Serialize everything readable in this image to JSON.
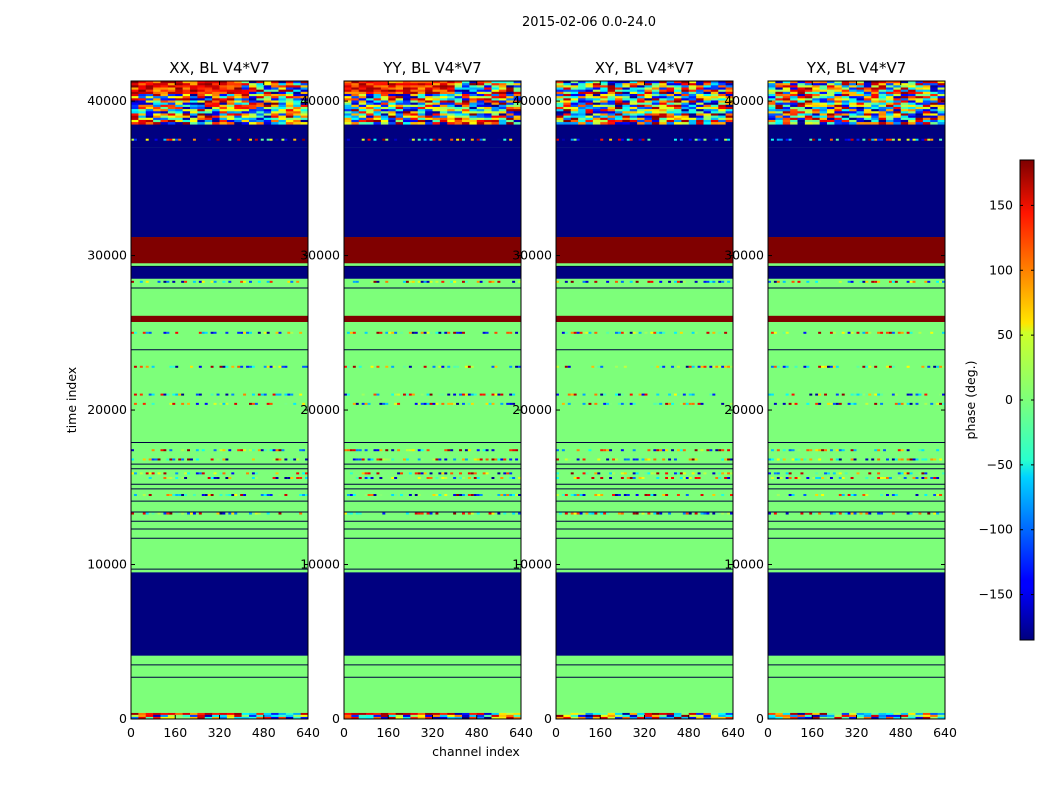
{
  "suptitle": "2015-02-06 0.0-24.0",
  "colors": {
    "dark_blue": "#000080",
    "dark_red": "#800000",
    "green": "#7dff7a",
    "frame": "#000000"
  },
  "chart_data": {
    "type": "heatmap",
    "title": "2015-02-06 0.0-24.0",
    "xlabel": "channel index",
    "ylabel": "time index",
    "xlim": [
      0,
      640
    ],
    "ylim": [
      0,
      41300
    ],
    "xticks": [
      0,
      160,
      320,
      480,
      640
    ],
    "yticks": [
      0,
      10000,
      20000,
      30000,
      40000
    ],
    "panels": [
      {
        "title": "XX, BL V4*V7",
        "pol": "XX"
      },
      {
        "title": "YY, BL V4*V7",
        "pol": "YY"
      },
      {
        "title": "XY, BL V4*V7",
        "pol": "XY"
      },
      {
        "title": "YX, BL V4*V7",
        "pol": "YX"
      }
    ],
    "phase_bands_approx": [
      {
        "y0": 0,
        "y1": 400,
        "phase": "noisy"
      },
      {
        "y0": 400,
        "y1": 4100,
        "phase": 0
      },
      {
        "y0": 4100,
        "y1": 9500,
        "phase": -180
      },
      {
        "y0": 9500,
        "y1": 18000,
        "phase": 0
      },
      {
        "y0": 18000,
        "y1": 25500,
        "phase": 0
      },
      {
        "y0": 25700,
        "y1": 26100,
        "phase": 180
      },
      {
        "y0": 26300,
        "y1": 27700,
        "phase": 0
      },
      {
        "y0": 28500,
        "y1": 29300,
        "phase": -180
      },
      {
        "y0": 29500,
        "y1": 31200,
        "phase": 180
      },
      {
        "y0": 31200,
        "y1": 37000,
        "phase": -180
      },
      {
        "y0": 37000,
        "y1": 38500,
        "phase": -180
      },
      {
        "y0": 38500,
        "y1": 41300,
        "phase": "noisy"
      }
    ],
    "colorbar": {
      "label": "phase (deg.)",
      "range": [
        -185,
        185
      ],
      "ticks": [
        -150,
        -100,
        -50,
        0,
        50,
        100,
        150
      ],
      "tick_labels": [
        "−150",
        "−100",
        "−50",
        "0",
        "50",
        "100",
        "150"
      ],
      "colormap": "jet"
    }
  }
}
